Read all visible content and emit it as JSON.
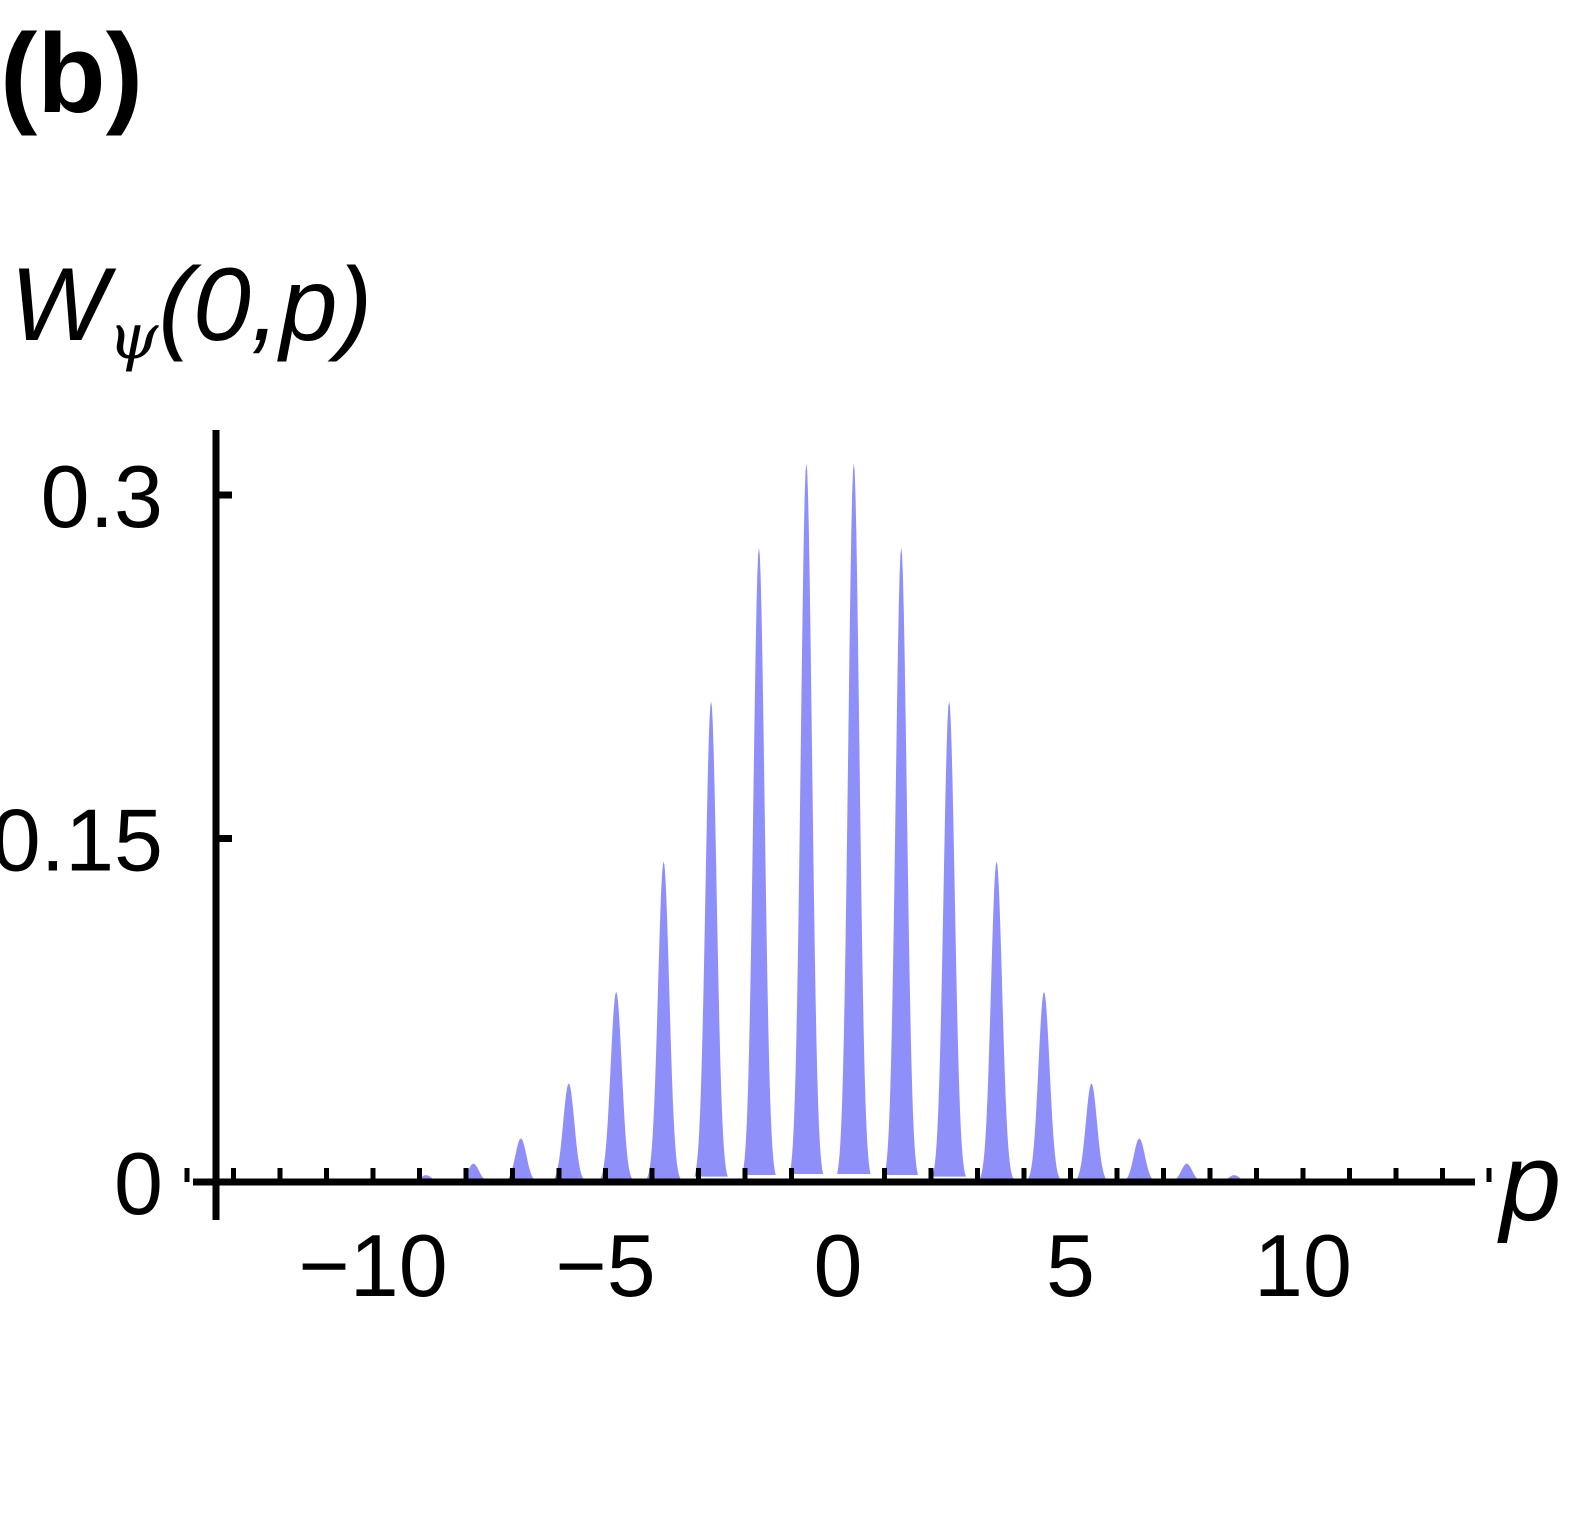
{
  "panel_label": "(b)",
  "ylabel": {
    "main": "W",
    "sub": "ψ",
    "args": "(0,p)"
  },
  "xlabel": "p",
  "colors": {
    "fill": "#8f8ffa",
    "axis": "#000000"
  },
  "chart_data": {
    "type": "area",
    "title": "",
    "xlabel": "p",
    "ylabel": "Wψ(0,p)",
    "xlim": [
      -14,
      14
    ],
    "ylim": [
      0,
      0.33
    ],
    "xticks": [
      -10,
      -5,
      0,
      5,
      10
    ],
    "xtick_labels": [
      "−10",
      "−5",
      "0",
      "5",
      "10"
    ],
    "yticks": [
      0,
      0.15,
      0.3
    ],
    "ytick_labels": [
      "0",
      "0.15",
      "0.3"
    ],
    "minor_xtick_step": 1,
    "grid": false,
    "series": [
      {
        "peaks": {
          "x": [
            -8.86,
            -7.84,
            -6.82,
            -5.79,
            -4.77,
            -3.75,
            -2.73,
            -1.7,
            -0.68,
            0.34,
            1.36,
            2.39,
            3.41,
            4.43,
            5.45,
            6.48,
            7.5,
            8.52,
            9.54
          ],
          "y": [
            0.003,
            0.008,
            0.019,
            0.043,
            0.083,
            0.14,
            0.21,
            0.277,
            0.314,
            0.314,
            0.277,
            0.21,
            0.14,
            0.083,
            0.043,
            0.019,
            0.008,
            0.003,
            0.001
          ]
        }
      }
    ]
  }
}
